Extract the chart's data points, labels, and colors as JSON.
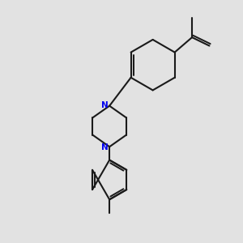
{
  "bg_color": "#e2e2e2",
  "bond_color": "#1a1a1a",
  "nitrogen_color": "#0000ee",
  "lw": 1.5,
  "xlim": [
    0,
    10
  ],
  "ylim": [
    0,
    10
  ]
}
